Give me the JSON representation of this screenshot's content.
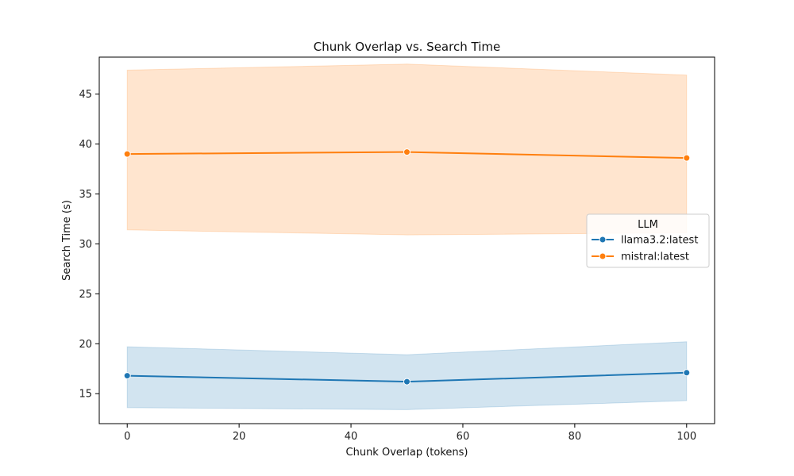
{
  "chart_data": {
    "type": "line",
    "title": "Chunk Overlap vs. Search Time",
    "xlabel": "Chunk Overlap (tokens)",
    "ylabel": "Search Time (s)",
    "xlim": [
      -5,
      105
    ],
    "ylim": [
      12,
      48.7
    ],
    "xticks": [
      0,
      20,
      40,
      60,
      80,
      100
    ],
    "yticks": [
      15,
      20,
      25,
      30,
      35,
      40,
      45
    ],
    "grid": false,
    "legend": {
      "title": "LLM",
      "placement": "center-right"
    },
    "x": [
      0,
      50,
      100
    ],
    "series": [
      {
        "name": "llama3.2:latest",
        "color": "#1f77b4",
        "values": [
          16.8,
          16.2,
          17.1
        ],
        "ci_lower": [
          13.6,
          13.4,
          14.3
        ],
        "ci_upper": [
          19.7,
          18.9,
          20.2
        ]
      },
      {
        "name": "mistral:latest",
        "color": "#ff7f0e",
        "values": [
          39.0,
          39.2,
          38.6
        ],
        "ci_lower": [
          31.4,
          30.9,
          31.1
        ],
        "ci_upper": [
          47.4,
          48.0,
          46.9
        ]
      }
    ]
  }
}
